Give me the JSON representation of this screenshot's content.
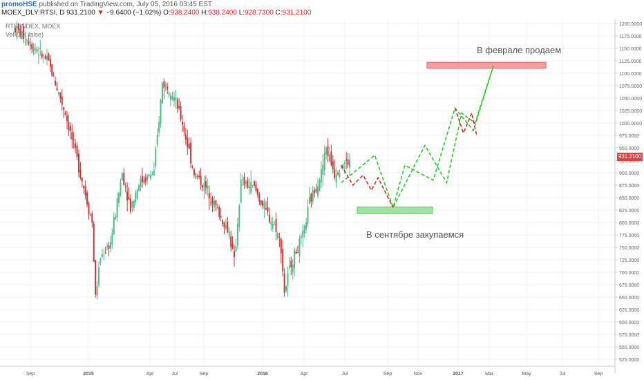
{
  "header": {
    "user": "promoHSE",
    "published": " published on TradingView.com, July 05, 2016 03:45 EST"
  },
  "ohlc": {
    "symbol": "MOEX_DLY:RTSI, D",
    "last": "931.2100",
    "change": "−9.6400 (−1.02%)",
    "open_label": "O:",
    "open": "938.2400",
    "high_label": "H:",
    "high": "938.2400",
    "low_label": "L:",
    "low": "928.7300",
    "close_label": "C:",
    "close": "931.2100"
  },
  "legend": {
    "series": "RTS INDEX, MOEX",
    "volume": "Vol (20, false)"
  },
  "annotations": {
    "sell": "В феврале продаем",
    "buy": "В сентябре закупаемся"
  },
  "last_price_tag": "931.2100",
  "colors": {
    "up": "#53b987",
    "down": "#cc3333",
    "forecast_up": "#22cc22",
    "forecast_down": "#dd2222",
    "sell_zone": "#f08080",
    "buy_zone": "#7de07d"
  },
  "chart_data": {
    "type": "candlestick",
    "y_ticks": [
      "525.0000",
      "550.0000",
      "575.0000",
      "600.0000",
      "625.0000",
      "650.0000",
      "675.0000",
      "700.0000",
      "725.0000",
      "750.0000",
      "775.0000",
      "800.0000",
      "825.0000",
      "850.0000",
      "875.0000",
      "900.0000",
      "925.0000",
      "950.0000",
      "975.0000",
      "1000.0000",
      "1025.0000",
      "1050.0000",
      "1075.0000",
      "1100.0000",
      "1125.0000",
      "1150.0000",
      "1175.0000",
      "1200.0000"
    ],
    "x_ticks": [
      "Sep",
      "2015",
      "Apr",
      "Jul",
      "Sep",
      "2016",
      "Apr",
      "Jul",
      "Sep",
      "Nov",
      "2017",
      "Mar",
      "May",
      "Jul",
      "Sep"
    ],
    "ylim": [
      510,
      1210
    ],
    "trend_points": [
      [
        0,
        1190
      ],
      [
        14,
        1170
      ],
      [
        40,
        1120
      ],
      [
        60,
        1020
      ],
      [
        78,
        900
      ],
      [
        92,
        800
      ],
      [
        96,
        650
      ],
      [
        102,
        730
      ],
      [
        114,
        760
      ],
      [
        128,
        900
      ],
      [
        138,
        830
      ],
      [
        148,
        880
      ],
      [
        166,
        900
      ],
      [
        176,
        1080
      ],
      [
        186,
        1070
      ],
      [
        200,
        1000
      ],
      [
        214,
        900
      ],
      [
        232,
        860
      ],
      [
        246,
        810
      ],
      [
        256,
        780
      ],
      [
        262,
        720
      ],
      [
        270,
        880
      ],
      [
        286,
        870
      ],
      [
        300,
        820
      ],
      [
        312,
        790
      ],
      [
        318,
        750
      ],
      [
        322,
        660
      ],
      [
        330,
        720
      ],
      [
        344,
        770
      ],
      [
        352,
        840
      ],
      [
        366,
        900
      ],
      [
        372,
        950
      ],
      [
        382,
        900
      ],
      [
        392,
        920
      ],
      [
        400,
        920
      ]
    ],
    "forecast_green": [
      [
        390,
        880
      ],
      [
        430,
        935
      ],
      [
        452,
        830
      ],
      [
        490,
        955
      ],
      [
        516,
        880
      ],
      [
        534,
        1020
      ],
      [
        550,
        1000
      ],
      [
        572,
        1115
      ],
      [
        548,
        985
      ],
      [
        526,
        1030
      ],
      [
        500,
        885
      ],
      [
        466,
        915
      ],
      [
        452,
        830
      ]
    ],
    "forecast_red": [
      [
        390,
        915
      ],
      [
        404,
        875
      ],
      [
        416,
        895
      ],
      [
        426,
        865
      ],
      [
        434,
        890
      ],
      [
        452,
        830
      ]
    ],
    "forecast_red2": [
      [
        526,
        1030
      ],
      [
        536,
        980
      ],
      [
        546,
        1020
      ],
      [
        552,
        975
      ]
    ],
    "sell_zone": {
      "x_from": "Jan 2017",
      "x_to": "Jun 2017",
      "y_low": 1110,
      "y_high": 1122
    },
    "buy_zone": {
      "x_from": "Aug 2016",
      "x_to": "Oct 2016",
      "y_low": 818,
      "y_high": 831
    },
    "grid": true
  }
}
